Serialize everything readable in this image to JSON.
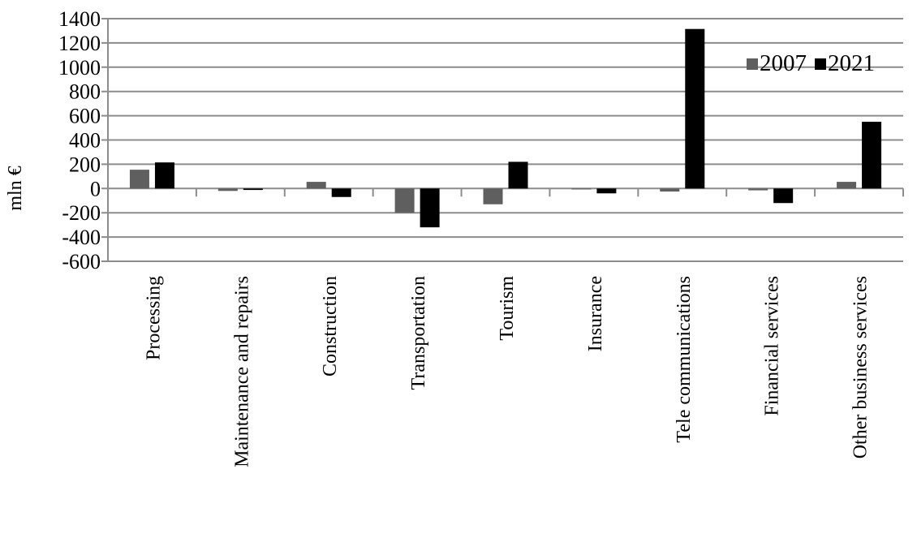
{
  "chart_data": {
    "type": "bar",
    "title": "",
    "xlabel": "",
    "ylabel": "mln €",
    "ylim": [
      -600,
      1400
    ],
    "yticks": [
      1400,
      1200,
      1000,
      800,
      600,
      400,
      200,
      0,
      -200,
      -400,
      -600
    ],
    "grid": true,
    "legend_position": "top-right inside",
    "categories": [
      "Processing",
      "Maintenance and repairs",
      "Construction",
      "Transportation",
      "Tourism",
      "Insurance",
      "Tele communications",
      "Financial services",
      "Other business services"
    ],
    "series": [
      {
        "name": "2007",
        "color": "#5f5f5f",
        "values": [
          155,
          -20,
          55,
          -200,
          -130,
          -8,
          -25,
          -15,
          55
        ]
      },
      {
        "name": "2021",
        "color": "#000000",
        "values": [
          215,
          -12,
          -70,
          -320,
          220,
          -40,
          1315,
          -120,
          550
        ]
      }
    ]
  },
  "legend": {
    "items": [
      {
        "label": "2007",
        "color": "#5f5f5f"
      },
      {
        "label": "2021",
        "color": "#000000"
      }
    ]
  },
  "axis": {
    "ylabel": "mln €"
  }
}
